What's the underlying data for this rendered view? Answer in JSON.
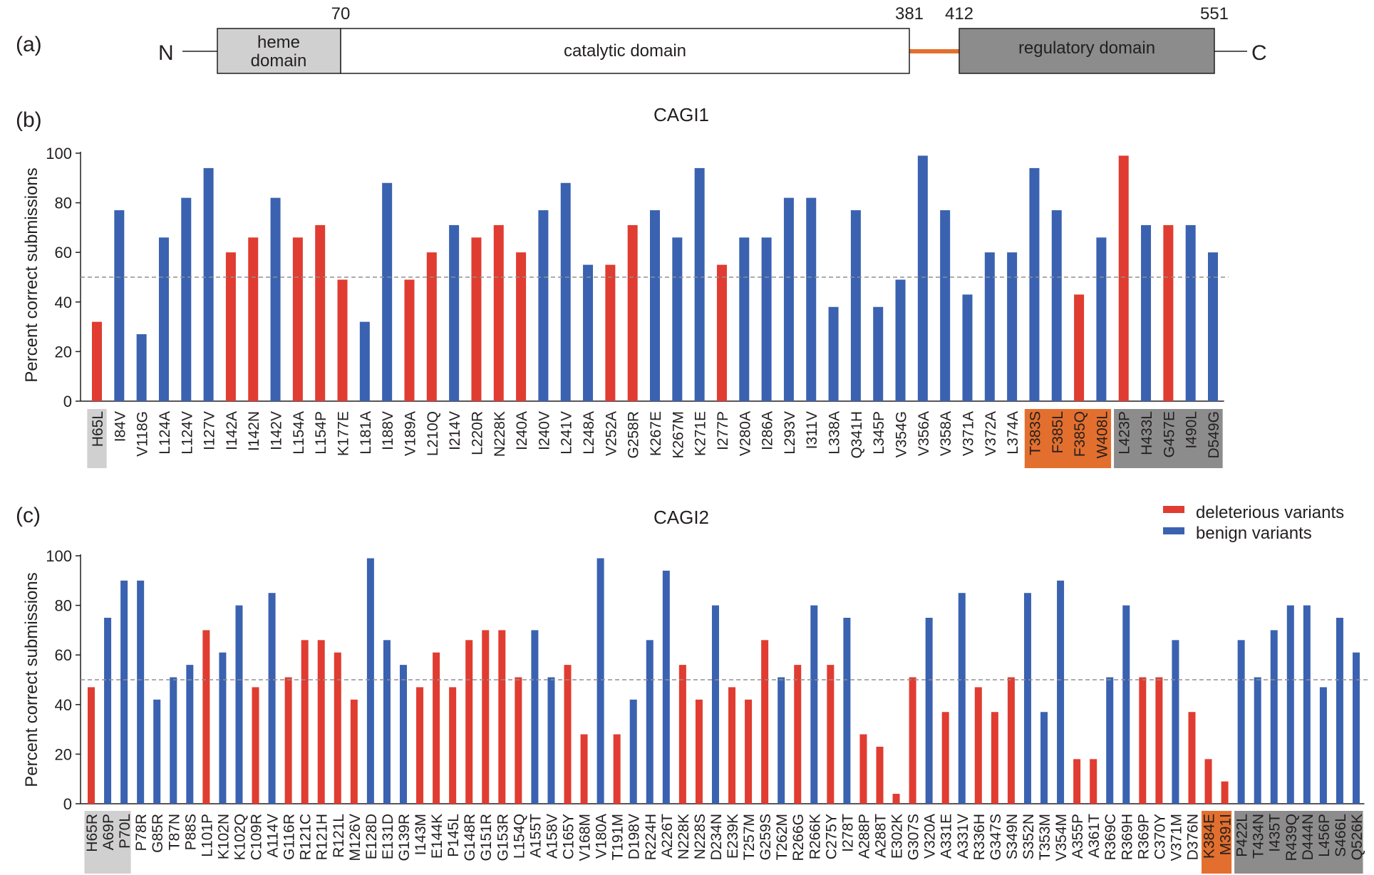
{
  "colors": {
    "deleterious": "#e03c31",
    "benign": "#3a62b0",
    "heme": "#d0d0d0",
    "linker": "#e36f2e",
    "regulatory": "#8c8c8c",
    "baseline": "#909090"
  },
  "panel_a": {
    "label": "(a)",
    "n_term": "N",
    "c_term": "C",
    "domains": [
      {
        "name_lines": [
          "heme",
          "domain"
        ],
        "kind": "heme",
        "start": 0,
        "end": 70
      },
      {
        "name_lines": [
          "catalytic domain"
        ],
        "kind": "catalytic",
        "start": 70,
        "end": 381
      },
      {
        "name_lines": [
          "regulatory domain"
        ],
        "kind": "regulatory",
        "start": 412,
        "end": 551
      }
    ],
    "linker": {
      "start": 381,
      "end": 412
    },
    "boundary_labels": [
      "70",
      "381",
      "412",
      "551"
    ]
  },
  "chart_data": [
    {
      "panel_label": "(b)",
      "type": "bar",
      "title": "CAGI1",
      "ylabel": "Percent correct submissions",
      "ylim": [
        0,
        100
      ],
      "yticks": [
        0,
        20,
        40,
        60,
        80,
        100
      ],
      "reference_line": 50,
      "categories": [
        "H65L",
        "I84V",
        "V118G",
        "L124A",
        "L124V",
        "I127V",
        "I142A",
        "I142N",
        "I142V",
        "L154A",
        "L154P",
        "K177E",
        "L181A",
        "I188V",
        "V189A",
        "L210Q",
        "I214V",
        "L220R",
        "N228K",
        "I240A",
        "I240V",
        "L241V",
        "L248A",
        "V252A",
        "G258R",
        "K267E",
        "K267M",
        "K271E",
        "I277P",
        "V280A",
        "I286A",
        "L293V",
        "I311V",
        "L338A",
        "Q341H",
        "L345P",
        "V354G",
        "V356A",
        "V358A",
        "V371A",
        "V372A",
        "L374A",
        "T383S",
        "F385L",
        "F385Q",
        "W408L",
        "L423P",
        "H433L",
        "G457E",
        "I490L",
        "D549G"
      ],
      "values": [
        32,
        77,
        27,
        66,
        82,
        94,
        60,
        66,
        82,
        66,
        71,
        49,
        32,
        88,
        49,
        60,
        71,
        66,
        71,
        60,
        77,
        88,
        55,
        55,
        71,
        77,
        66,
        94,
        55,
        66,
        66,
        82,
        82,
        38,
        77,
        38,
        49,
        99,
        77,
        43,
        60,
        60,
        94,
        77,
        43,
        66,
        99,
        71,
        71,
        71,
        60
      ],
      "classes": [
        "d",
        "b",
        "b",
        "b",
        "b",
        "b",
        "d",
        "d",
        "b",
        "d",
        "d",
        "d",
        "b",
        "b",
        "d",
        "d",
        "b",
        "d",
        "d",
        "d",
        "b",
        "b",
        "b",
        "d",
        "d",
        "b",
        "b",
        "b",
        "d",
        "b",
        "b",
        "b",
        "b",
        "b",
        "b",
        "b",
        "b",
        "b",
        "b",
        "b",
        "b",
        "b",
        "b",
        "b",
        "d",
        "b",
        "d",
        "b",
        "d",
        "b",
        "b"
      ],
      "label_groups": [
        {
          "kind": "heme",
          "from": 0,
          "to": 0
        },
        {
          "kind": "linker",
          "from": 42,
          "to": 45
        },
        {
          "kind": "regulatory",
          "from": 46,
          "to": 50
        }
      ]
    },
    {
      "panel_label": "(c)",
      "type": "bar",
      "title": "CAGI2",
      "ylabel": "Percent correct submissions",
      "ylim": [
        0,
        100
      ],
      "yticks": [
        0,
        20,
        40,
        60,
        80,
        100
      ],
      "reference_line": 50,
      "legend": {
        "position": "top-right",
        "entries": [
          {
            "label": "deleterious variants",
            "class": "d"
          },
          {
            "label": "benign variants",
            "class": "b"
          }
        ]
      },
      "categories": [
        "H65R",
        "A69P",
        "P70L",
        "P78R",
        "G85R",
        "T87N",
        "P88S",
        "L101P",
        "K102N",
        "K102Q",
        "C109R",
        "A114V",
        "G116R",
        "R121C",
        "R121H",
        "R121L",
        "M126V",
        "E128D",
        "E131D",
        "G139R",
        "I143M",
        "E144K",
        "P145L",
        "G148R",
        "G151R",
        "G153R",
        "L154Q",
        "A155T",
        "A158V",
        "C165Y",
        "V168M",
        "V180A",
        "T191M",
        "D198V",
        "R224H",
        "A226T",
        "N228K",
        "N228S",
        "D234N",
        "E239K",
        "T257M",
        "G259S",
        "T262M",
        "R266G",
        "R266K",
        "C275Y",
        "I278T",
        "A288P",
        "A288T",
        "E302K",
        "G307S",
        "V320A",
        "A331E",
        "A331V",
        "R336H",
        "G347S",
        "S349N",
        "S352N",
        "T353M",
        "V354M",
        "A355P",
        "A361T",
        "R369C",
        "R369H",
        "R369P",
        "C370Y",
        "V371M",
        "D376N",
        "K384E",
        "M391I",
        "P422L",
        "T434N",
        "I435T",
        "R439Q",
        "D444N",
        "L456P",
        "S466L",
        "Q526K"
      ],
      "values": [
        47,
        75,
        90,
        90,
        42,
        51,
        56,
        70,
        61,
        80,
        47,
        85,
        51,
        66,
        66,
        61,
        42,
        99,
        66,
        56,
        47,
        61,
        47,
        66,
        70,
        70,
        51,
        70,
        51,
        56,
        28,
        99,
        28,
        42,
        66,
        94,
        56,
        42,
        80,
        47,
        42,
        66,
        51,
        56,
        80,
        56,
        75,
        28,
        23,
        4,
        51,
        75,
        37,
        85,
        47,
        37,
        51,
        85,
        37,
        90,
        18,
        18,
        51,
        80,
        51,
        51,
        66,
        37,
        18,
        9,
        66,
        51,
        70,
        80,
        80,
        47,
        75,
        61
      ],
      "classes": [
        "d",
        "b",
        "b",
        "b",
        "b",
        "b",
        "b",
        "d",
        "b",
        "b",
        "d",
        "b",
        "d",
        "d",
        "d",
        "d",
        "d",
        "b",
        "b",
        "b",
        "d",
        "d",
        "d",
        "d",
        "d",
        "d",
        "d",
        "b",
        "b",
        "d",
        "d",
        "b",
        "d",
        "b",
        "b",
        "b",
        "d",
        "d",
        "b",
        "d",
        "d",
        "d",
        "b",
        "d",
        "b",
        "d",
        "b",
        "d",
        "d",
        "d",
        "d",
        "b",
        "d",
        "b",
        "d",
        "d",
        "d",
        "b",
        "b",
        "b",
        "d",
        "d",
        "b",
        "b",
        "d",
        "d",
        "b",
        "d",
        "d",
        "d",
        "b",
        "b",
        "b",
        "b",
        "b",
        "b",
        "b",
        "b"
      ],
      "label_groups": [
        {
          "kind": "heme",
          "from": 0,
          "to": 2
        },
        {
          "kind": "linker",
          "from": 68,
          "to": 69
        },
        {
          "kind": "regulatory",
          "from": 70,
          "to": 77
        }
      ]
    }
  ]
}
